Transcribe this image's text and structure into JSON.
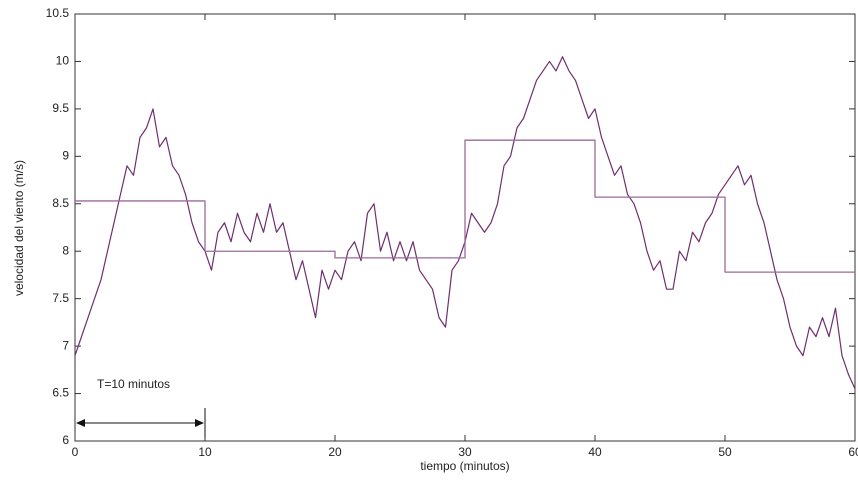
{
  "chart_data": {
    "type": "line",
    "xlabel": "tiempo (minutos)",
    "ylabel": "velocidad del viento (m/s)",
    "xlim": [
      0,
      60
    ],
    "xticks": [
      0,
      10,
      20,
      30,
      40,
      50,
      60
    ],
    "ylim": [
      6,
      10.5
    ],
    "yticks": [
      6,
      6.5,
      7,
      7.5,
      8,
      8.5,
      9,
      9.5,
      10,
      10.5
    ],
    "series": [
      {
        "color": "#6e2f6e",
        "x": [
          0,
          0.5,
          1,
          1.5,
          2,
          2.5,
          3,
          3.5,
          4,
          4.5,
          5,
          5.5,
          6,
          6.5,
          7,
          7.5,
          8,
          8.5,
          9,
          9.5,
          10,
          10.5,
          11,
          11.5,
          12,
          12.5,
          13,
          13.5,
          14,
          14.5,
          15,
          15.5,
          16,
          16.5,
          17,
          17.5,
          18,
          18.5,
          19,
          19.5,
          20,
          20.5,
          21,
          21.5,
          22,
          22.5,
          23,
          23.5,
          24,
          24.5,
          25,
          25.5,
          26,
          26.5,
          27,
          27.5,
          28,
          28.5,
          29,
          29.5,
          30,
          30.5,
          31,
          31.5,
          32,
          32.5,
          33,
          33.5,
          34,
          34.5,
          35,
          35.5,
          36,
          36.5,
          37,
          37.5,
          38,
          38.5,
          39,
          39.5,
          40,
          40.5,
          41,
          41.5,
          42,
          42.5,
          43,
          43.5,
          44,
          44.5,
          45,
          45.5,
          46,
          46.5,
          47,
          47.5,
          48,
          48.5,
          49,
          49.5,
          50,
          50.5,
          51,
          51.5,
          52,
          52.5,
          53,
          53.5,
          54,
          54.5,
          55,
          55.5,
          56,
          56.5,
          57,
          57.5,
          58,
          58.5,
          59,
          59.5,
          60
        ],
        "values": [
          6.9,
          7.1,
          7.3,
          7.5,
          7.7,
          8.0,
          8.3,
          8.6,
          8.9,
          8.8,
          9.2,
          9.3,
          9.5,
          9.1,
          9.2,
          8.9,
          8.8,
          8.6,
          8.3,
          8.1,
          8.0,
          7.8,
          8.2,
          8.3,
          8.1,
          8.4,
          8.2,
          8.1,
          8.4,
          8.2,
          8.5,
          8.2,
          8.3,
          8.0,
          7.7,
          7.9,
          7.6,
          7.3,
          7.8,
          7.6,
          7.8,
          7.7,
          8.0,
          8.1,
          7.9,
          8.4,
          8.5,
          8.0,
          8.2,
          7.9,
          8.1,
          7.9,
          8.1,
          7.8,
          7.7,
          7.6,
          7.3,
          7.2,
          7.8,
          7.9,
          8.1,
          8.4,
          8.3,
          8.2,
          8.3,
          8.5,
          8.9,
          9.0,
          9.3,
          9.4,
          9.6,
          9.8,
          9.9,
          10.0,
          9.9,
          10.05,
          9.9,
          9.8,
          9.6,
          9.4,
          9.5,
          9.2,
          9.0,
          8.8,
          8.9,
          8.6,
          8.5,
          8.3,
          8.0,
          7.8,
          7.9,
          7.6,
          7.6,
          8.0,
          7.9,
          8.2,
          8.1,
          8.3,
          8.4,
          8.6,
          8.7,
          8.8,
          8.9,
          8.7,
          8.8,
          8.5,
          8.3,
          8.0,
          7.7,
          7.5,
          7.2,
          7.0,
          6.9,
          7.2,
          7.1,
          7.3,
          7.1,
          7.4,
          6.9,
          6.7,
          6.55
        ]
      },
      {
        "color": "#9a6a9a",
        "x": [
          0,
          10,
          10,
          20,
          20,
          30,
          30,
          40,
          40,
          50,
          50,
          60
        ],
        "values": [
          8.53,
          8.53,
          8.0,
          8.0,
          7.93,
          7.93,
          9.17,
          9.17,
          8.57,
          8.57,
          7.78,
          7.78
        ]
      }
    ],
    "annotation": {
      "text": "T=10 minutos",
      "x": [
        0,
        10
      ]
    }
  }
}
